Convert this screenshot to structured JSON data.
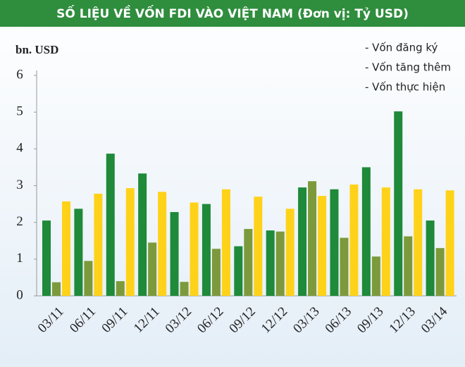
{
  "chart_data": {
    "type": "bar",
    "title": "SỐ LIỆU VỀ VỐN FDI VÀO VIỆT NAM (Đơn vị: Tỷ USD)",
    "y_label": "bn. USD",
    "categories": [
      "03/11",
      "06/11",
      "09/11",
      "12/11",
      "03/12",
      "06/12",
      "09/12",
      "12/12",
      "03/13",
      "06/13",
      "09/13",
      "12/13",
      "03/14"
    ],
    "series": [
      {
        "name": "- Vốn đăng ký",
        "color": "#1e8a3a",
        "values": [
          2.05,
          2.37,
          3.87,
          3.33,
          2.28,
          2.5,
          1.35,
          1.78,
          2.95,
          2.9,
          3.5,
          5.02,
          2.05
        ]
      },
      {
        "name": "- Vốn tăng thêm",
        "color": "#7c9a3c",
        "values": [
          0.37,
          0.95,
          0.4,
          1.45,
          0.38,
          1.28,
          1.82,
          1.75,
          3.12,
          1.58,
          1.07,
          1.62,
          1.3
        ]
      },
      {
        "name": "- Vốn thực hiện",
        "color": "#ffd21a",
        "values": [
          2.57,
          2.78,
          2.93,
          2.83,
          2.54,
          2.9,
          2.7,
          2.37,
          2.72,
          3.03,
          2.95,
          2.9,
          2.87
        ]
      }
    ],
    "ylim": [
      0,
      6
    ],
    "yticks": [
      0,
      1,
      2,
      3,
      4,
      5,
      6
    ]
  }
}
